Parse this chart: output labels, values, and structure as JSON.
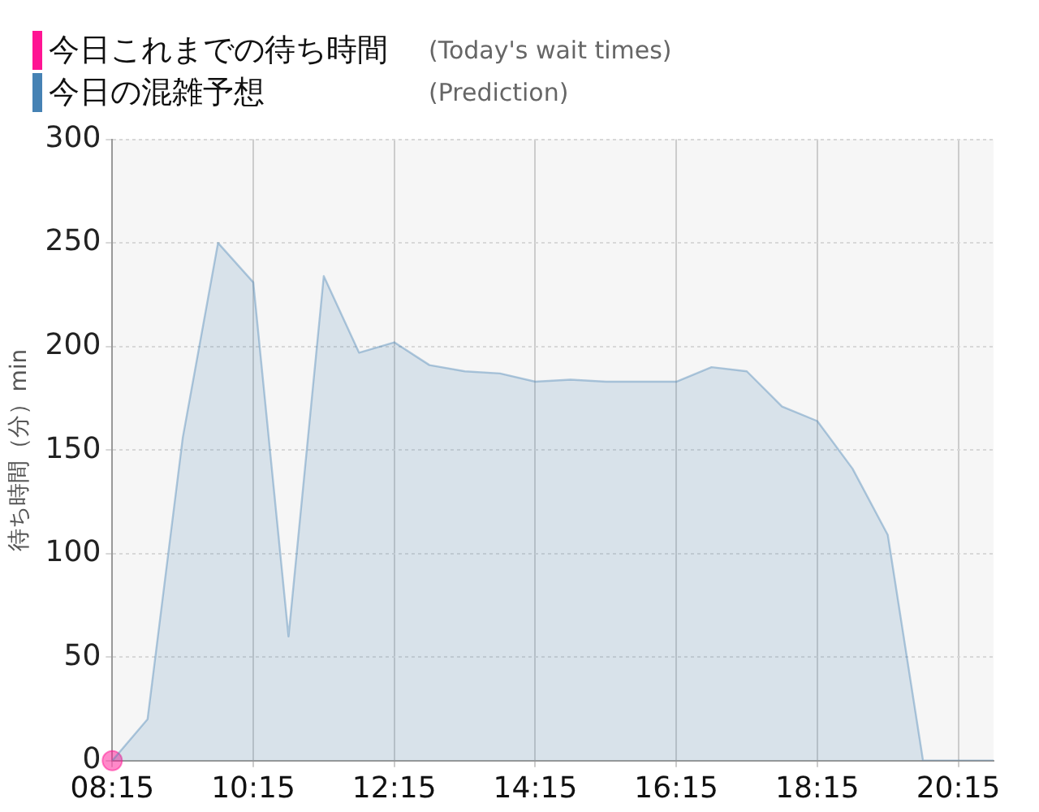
{
  "chart_data": {
    "type": "area",
    "ylabel": "待ち時間（分）min",
    "legend": "top left",
    "annotations": [
      "(Today's wait times)",
      "(Prediction)"
    ],
    "xlim": [
      8.25,
      20.75
    ],
    "ylim": [
      0,
      300
    ],
    "xticks": [
      {
        "value": 8.25,
        "label": "08:15"
      },
      {
        "value": 10.25,
        "label": "10:15"
      },
      {
        "value": 12.25,
        "label": "12:15"
      },
      {
        "value": 14.25,
        "label": "14:15"
      },
      {
        "value": 16.25,
        "label": "16:15"
      },
      {
        "value": 18.25,
        "label": "18:15"
      },
      {
        "value": 20.25,
        "label": "20:15"
      }
    ],
    "yticks": [
      0,
      50,
      100,
      150,
      200,
      250,
      300
    ],
    "grid": true,
    "series": [
      {
        "name": "今日これまでの待ち時間",
        "type": "scatter",
        "color": "#ff1493",
        "marker": "circle",
        "x": [
          8.25
        ],
        "values": [
          0
        ]
      },
      {
        "name": "今日の混雑予想",
        "color": "#4682b4",
        "marker": "none",
        "x": [
          8.25,
          8.75,
          9.25,
          9.75,
          10.25,
          10.75,
          11.25,
          11.75,
          12.25,
          12.75,
          13.25,
          13.75,
          14.25,
          14.75,
          15.25,
          15.75,
          16.25,
          16.75,
          17.25,
          17.75,
          18.25,
          18.75,
          19.25,
          19.75,
          20.25,
          20.75
        ],
        "values": [
          0,
          20,
          156,
          250,
          231,
          60,
          234,
          197,
          202,
          191,
          188,
          187,
          183,
          184,
          183,
          183,
          183,
          190,
          188,
          171,
          164,
          141,
          109,
          0,
          0,
          0
        ]
      }
    ]
  }
}
